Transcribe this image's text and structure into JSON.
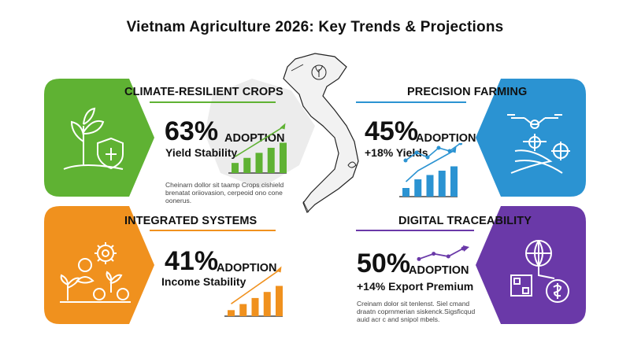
{
  "title": "Vietnam Agriculture 2026: Key Trends & Projections",
  "colors": {
    "green": "#5fb233",
    "blue": "#2b93d2",
    "orange": "#f0911e",
    "purple": "#6a39a8"
  },
  "sections": [
    {
      "heading": "CLIMATE-RESILIENT CROPS",
      "stat": "63%",
      "stat_label": "ADOPTION",
      "sub": "Yield Stability",
      "note": "Cheinarn dollor sit taamp Crops cishield brenatat oriiovasion, cerpeoid ono cone oonerus.",
      "chart_data": {
        "type": "bar",
        "values": [
          2,
          3,
          4,
          5,
          6
        ],
        "trend": "up"
      }
    },
    {
      "heading": "PRECISION FARMING",
      "stat": "45%",
      "stat_label": "ADOPTION",
      "sub": "+18% Yields",
      "note": "",
      "chart_data": {
        "type": "bar",
        "values": [
          1,
          2,
          2.5,
          3,
          3.5
        ],
        "trend": "up"
      }
    },
    {
      "heading": "INTEGRATED SYSTEMS",
      "stat": "41%",
      "stat_label": "ADOPTION",
      "sub": "Income Stability",
      "note": "",
      "chart_data": {
        "type": "bar",
        "values": [
          1,
          2,
          3,
          4,
          5
        ],
        "trend": "up"
      }
    },
    {
      "heading": "DIGITAL TRACEABILITY",
      "stat": "50%",
      "stat_label": "ADOPTION",
      "sub": "+14% Export Premium",
      "note": "Creinam dolor sit tenlenst. Siel cmand draatn coprnmerian siskenck.Sigsficqud auid acr c and snipol mbels.",
      "chart_data": {
        "type": "line",
        "values": [
          1,
          2,
          1.5,
          3
        ],
        "trend": "up"
      }
    }
  ]
}
